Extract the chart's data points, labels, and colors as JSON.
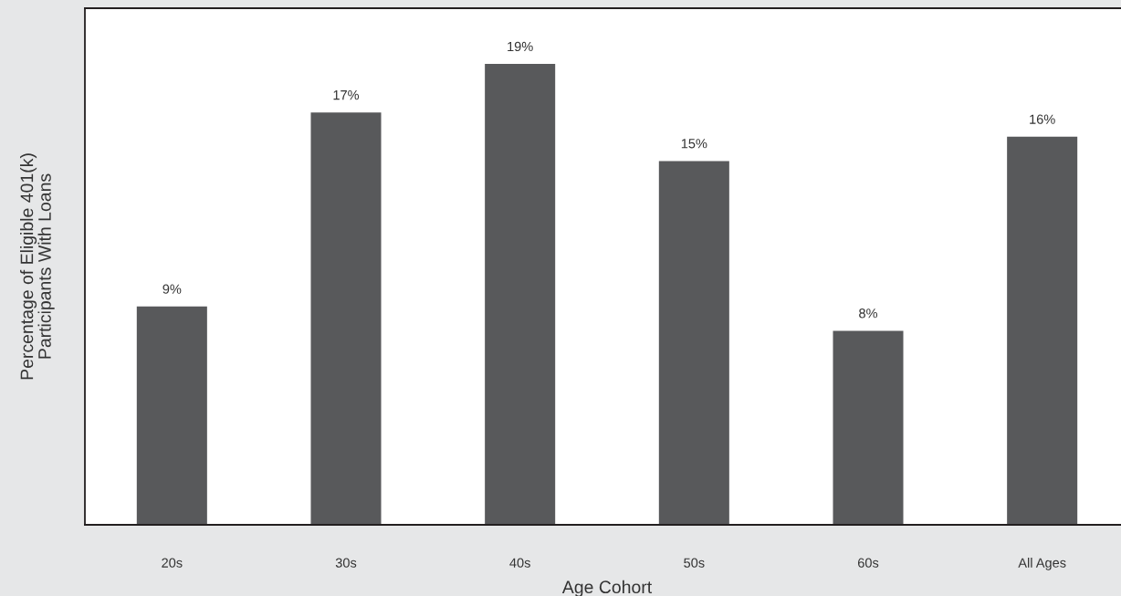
{
  "chart_data": {
    "type": "bar",
    "categories": [
      "20s",
      "30s",
      "40s",
      "50s",
      "60s",
      "All Ages"
    ],
    "values": [
      9,
      17,
      19,
      15,
      8,
      16
    ],
    "color": "#58595b",
    "value_labels": [
      "9%",
      "17%",
      "19%",
      "15%",
      "8%",
      "16%"
    ],
    "xlabel": "Age Cohort",
    "ylabel": "Percentage of Eligible 401(k)\nParticipants With Loans",
    "ylim": [
      0,
      21.3
    ],
    "tick_labels": "x"
  }
}
